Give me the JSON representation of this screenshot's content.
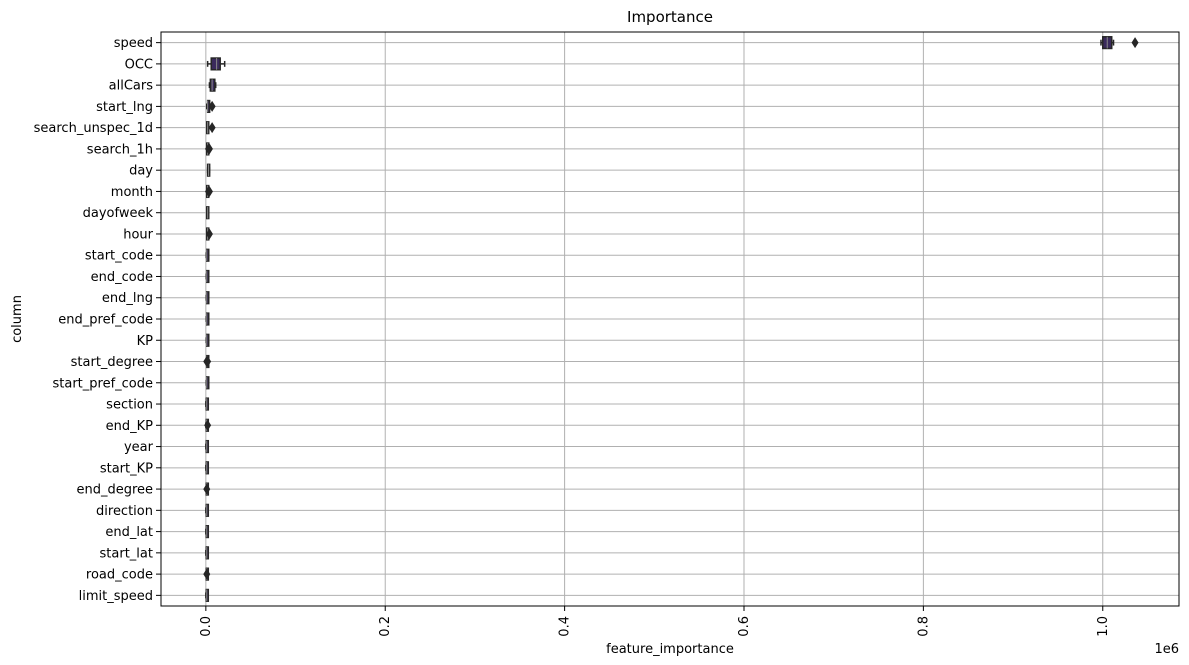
{
  "chart_data": {
    "type": "box",
    "orientation": "horizontal",
    "title": "Importance",
    "xlabel": "feature_importance",
    "ylabel": "column",
    "x_offset_label": "1e6",
    "xlim": [
      -0.05,
      1.085
    ],
    "x_ticks": [
      0.0,
      0.2,
      0.4,
      0.6,
      0.8,
      1.0
    ],
    "x_tick_labels": [
      "0.0",
      "0.2",
      "0.4",
      "0.6",
      "0.8",
      "1.0"
    ],
    "grid": true,
    "colors": {
      "box_fill": "#3a2a5c",
      "line": "#262626",
      "grid": "#b0b0b0",
      "axes": "#000000"
    },
    "categories": [
      "speed",
      "OCC",
      "allCars",
      "start_lng",
      "search_unspec_1d",
      "search_1h",
      "day",
      "month",
      "dayofweek",
      "hour",
      "start_code",
      "end_code",
      "end_lng",
      "end_pref_code",
      "KP",
      "start_degree",
      "start_pref_code",
      "section",
      "end_KP",
      "year",
      "start_KP",
      "end_degree",
      "direction",
      "end_lat",
      "start_lat",
      "road_code",
      "limit_speed"
    ],
    "boxes": [
      {
        "min": 0.998,
        "q1": 1.0,
        "median": 1.005,
        "q3": 1.01,
        "max": 1.012,
        "outliers": [
          1.036
        ]
      },
      {
        "min": 0.002,
        "q1": 0.006,
        "median": 0.012,
        "q3": 0.016,
        "max": 0.021,
        "outliers": []
      },
      {
        "min": 0.004,
        "q1": 0.005,
        "median": 0.007,
        "q3": 0.01,
        "max": 0.011,
        "outliers": []
      },
      {
        "min": 0.001,
        "q1": 0.002,
        "median": 0.002,
        "q3": 0.003,
        "max": 0.004,
        "outliers": [
          0.007
        ]
      },
      {
        "min": 0.001,
        "q1": 0.001,
        "median": 0.002,
        "q3": 0.002,
        "max": 0.003,
        "outliers": [
          0.007
        ]
      },
      {
        "min": 0.001,
        "q1": 0.001,
        "median": 0.002,
        "q3": 0.002,
        "max": 0.003,
        "outliers": [
          0.004,
          0.003
        ]
      },
      {
        "min": 0.002,
        "q1": 0.002,
        "median": 0.003,
        "q3": 0.003,
        "max": 0.004,
        "outliers": []
      },
      {
        "min": 0.001,
        "q1": 0.001,
        "median": 0.002,
        "q3": 0.002,
        "max": 0.003,
        "outliers": [
          0.004,
          0.003
        ]
      },
      {
        "min": 0.001,
        "q1": 0.001,
        "median": 0.002,
        "q3": 0.002,
        "max": 0.003,
        "outliers": []
      },
      {
        "min": 0.001,
        "q1": 0.001,
        "median": 0.002,
        "q3": 0.002,
        "max": 0.003,
        "outliers": [
          0.004
        ]
      },
      {
        "min": 0.0005,
        "q1": 0.001,
        "median": 0.001,
        "q3": 0.0015,
        "max": 0.002,
        "outliers": []
      },
      {
        "min": 0.0005,
        "q1": 0.001,
        "median": 0.001,
        "q3": 0.0015,
        "max": 0.002,
        "outliers": []
      },
      {
        "min": 0.0005,
        "q1": 0.001,
        "median": 0.001,
        "q3": 0.0015,
        "max": 0.002,
        "outliers": []
      },
      {
        "min": 0.0005,
        "q1": 0.001,
        "median": 0.001,
        "q3": 0.0015,
        "max": 0.002,
        "outliers": []
      },
      {
        "min": 0.0005,
        "q1": 0.001,
        "median": 0.001,
        "q3": 0.0015,
        "max": 0.002,
        "outliers": []
      },
      {
        "min": 0.0005,
        "q1": 0.001,
        "median": 0.001,
        "q3": 0.0015,
        "max": 0.002,
        "outliers": [
          0.001,
          0.002
        ]
      },
      {
        "min": 0.0005,
        "q1": 0.001,
        "median": 0.001,
        "q3": 0.0015,
        "max": 0.002,
        "outliers": []
      },
      {
        "min": 0.0,
        "q1": 0.0005,
        "median": 0.001,
        "q3": 0.001,
        "max": 0.0015,
        "outliers": []
      },
      {
        "min": 0.0,
        "q1": 0.0005,
        "median": 0.001,
        "q3": 0.001,
        "max": 0.0015,
        "outliers": [
          0.002
        ]
      },
      {
        "min": 0.0,
        "q1": 0.0005,
        "median": 0.001,
        "q3": 0.001,
        "max": 0.0015,
        "outliers": []
      },
      {
        "min": 0.0,
        "q1": 0.0005,
        "median": 0.001,
        "q3": 0.001,
        "max": 0.0015,
        "outliers": []
      },
      {
        "min": 0.0,
        "q1": 0.0005,
        "median": 0.001,
        "q3": 0.001,
        "max": 0.0015,
        "outliers": [
          0.001
        ]
      },
      {
        "min": 0.0,
        "q1": 0.0005,
        "median": 0.001,
        "q3": 0.001,
        "max": 0.0015,
        "outliers": []
      },
      {
        "min": 0.0,
        "q1": 0.0005,
        "median": 0.001,
        "q3": 0.001,
        "max": 0.0015,
        "outliers": []
      },
      {
        "min": 0.0,
        "q1": 0.0005,
        "median": 0.001,
        "q3": 0.001,
        "max": 0.0015,
        "outliers": []
      },
      {
        "min": 0.0,
        "q1": 0.0005,
        "median": 0.001,
        "q3": 0.001,
        "max": 0.0015,
        "outliers": [
          0.001
        ]
      },
      {
        "min": 0.0,
        "q1": 0.0005,
        "median": 0.001,
        "q3": 0.001,
        "max": 0.0015,
        "outliers": []
      }
    ]
  }
}
